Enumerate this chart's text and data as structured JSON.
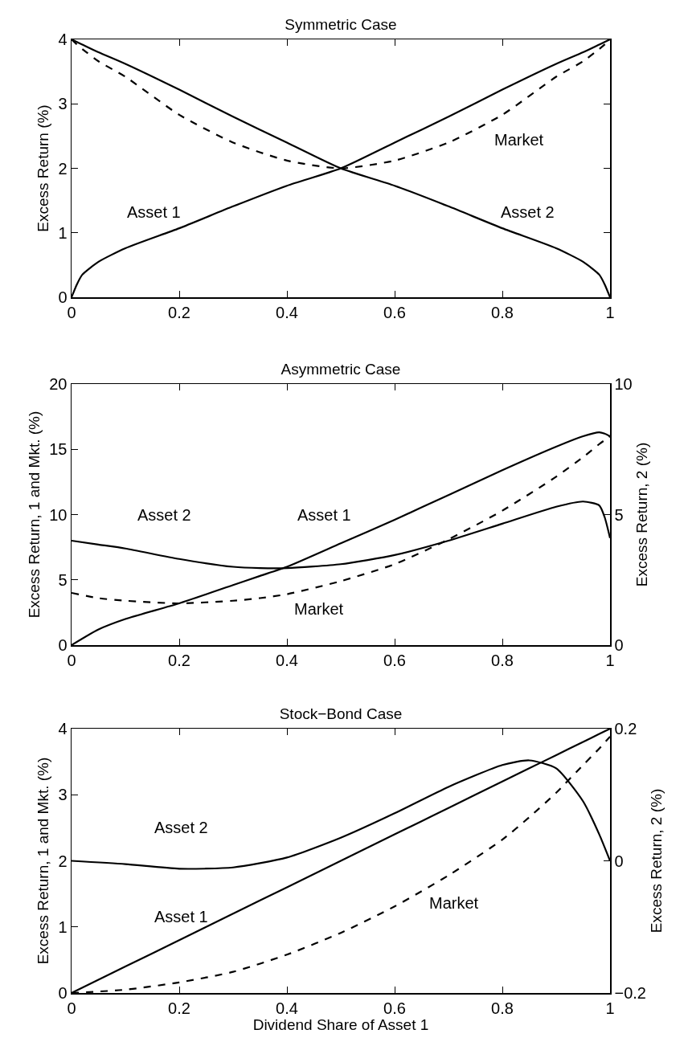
{
  "chart_data": [
    {
      "type": "line",
      "title": "Symmetric Case",
      "ylabel": "Excess Return (%)",
      "x": [
        0,
        0.01,
        0.02,
        0.05,
        0.1,
        0.2,
        0.3,
        0.4,
        0.5,
        0.6,
        0.7,
        0.8,
        0.9,
        0.95,
        0.98,
        0.99,
        1
      ],
      "xlim": [
        0,
        1
      ],
      "xticks": [
        0,
        0.2,
        0.4,
        0.6,
        0.8,
        1
      ],
      "ylim": [
        0,
        4
      ],
      "yticks": [
        0,
        1,
        2,
        3,
        4
      ],
      "legend": false,
      "series": [
        {
          "name": "Asset 1",
          "color": "#000000",
          "line_style": "solid",
          "values": [
            0,
            0.2,
            0.35,
            0.55,
            0.76,
            1.07,
            1.41,
            1.73,
            2,
            2.4,
            2.8,
            3.22,
            3.62,
            3.8,
            3.92,
            3.96,
            4
          ]
        },
        {
          "name": "Asset 2",
          "color": "#000000",
          "line_style": "solid",
          "values": [
            4,
            3.96,
            3.92,
            3.8,
            3.62,
            3.22,
            2.8,
            2.4,
            2,
            1.73,
            1.41,
            1.07,
            0.76,
            0.55,
            0.35,
            0.2,
            0
          ]
        },
        {
          "name": "Market",
          "color": "#000000",
          "line_style": "dashed",
          "values": [
            4,
            3.92,
            3.85,
            3.66,
            3.42,
            2.83,
            2.4,
            2.12,
            2,
            2.12,
            2.4,
            2.83,
            3.42,
            3.66,
            3.85,
            3.92,
            4
          ]
        }
      ]
    },
    {
      "type": "line",
      "title": "Asymmetric Case",
      "ylabel": "Excess Return, 1 and Mkt. (%)",
      "y2label": "Excess Return, 2 (%)",
      "x": [
        0,
        0.05,
        0.1,
        0.2,
        0.3,
        0.35,
        0.4,
        0.5,
        0.6,
        0.7,
        0.8,
        0.9,
        0.95,
        0.98,
        0.99,
        1
      ],
      "xlim": [
        0,
        1
      ],
      "xticks": [
        0,
        0.2,
        0.4,
        0.6,
        0.8,
        1
      ],
      "ylim": [
        0,
        20
      ],
      "yticks": [
        0,
        5,
        10,
        15,
        20
      ],
      "y2lim": [
        0,
        10
      ],
      "y2ticks": [
        0,
        5,
        10
      ],
      "legend": false,
      "series": [
        {
          "name": "Asset 1",
          "color": "#000000",
          "line_style": "solid",
          "values": [
            0,
            1.2,
            2,
            3.2,
            4.6,
            5.3,
            6,
            7.8,
            9.6,
            11.5,
            13.4,
            15.2,
            16,
            16.3,
            16.2,
            16
          ]
        },
        {
          "name": "Asset 2",
          "color": "#000000",
          "line_style": "solid",
          "axis": "y2",
          "values": [
            4,
            3.85,
            3.7,
            3.3,
            3,
            2.95,
            2.95,
            3.1,
            3.45,
            4,
            4.65,
            5.3,
            5.5,
            5.35,
            4.9,
            4.1
          ]
        },
        {
          "name": "Market",
          "color": "#000000",
          "line_style": "dashed",
          "values": [
            4,
            3.6,
            3.4,
            3.2,
            3.4,
            3.6,
            3.9,
            4.9,
            6.2,
            8.1,
            10.3,
            12.9,
            14.4,
            15.4,
            15.7,
            16
          ]
        }
      ]
    },
    {
      "type": "line",
      "title": "Stock−Bond Case",
      "xlabel": "Dividend Share of Asset 1",
      "ylabel": "Excess Return, 1 and Mkt. (%)",
      "y2label": "Excess Return, 2 (%)",
      "x": [
        0,
        0.1,
        0.2,
        0.3,
        0.4,
        0.5,
        0.6,
        0.7,
        0.8,
        0.85,
        0.9,
        0.95,
        0.98,
        1
      ],
      "xlim": [
        0,
        1
      ],
      "xticks": [
        0,
        0.2,
        0.4,
        0.6,
        0.8,
        1
      ],
      "ylim": [
        0,
        4
      ],
      "yticks": [
        0,
        1,
        2,
        3,
        4
      ],
      "y2lim": [
        -0.2,
        0.2
      ],
      "y2ticks": [
        {
          "value": -0.2,
          "label": "−0.2"
        },
        0,
        0.2
      ],
      "legend": false,
      "series": [
        {
          "name": "Asset 1",
          "color": "#000000",
          "line_style": "solid",
          "values": [
            0,
            0.4,
            0.8,
            1.2,
            1.6,
            2,
            2.4,
            2.8,
            3.2,
            3.4,
            3.6,
            3.8,
            3.92,
            4
          ]
        },
        {
          "name": "Asset 2",
          "color": "#000000",
          "line_style": "solid",
          "axis": "y2",
          "values": [
            0,
            -0.005,
            -0.012,
            -0.01,
            0.005,
            0.035,
            0.072,
            0.112,
            0.145,
            0.152,
            0.14,
            0.09,
            0.04,
            0
          ]
        },
        {
          "name": "Market",
          "color": "#000000",
          "line_style": "dashed",
          "values": [
            0,
            0.05,
            0.16,
            0.32,
            0.58,
            0.91,
            1.31,
            1.78,
            2.32,
            2.66,
            3.03,
            3.45,
            3.7,
            3.88
          ]
        }
      ]
    }
  ]
}
